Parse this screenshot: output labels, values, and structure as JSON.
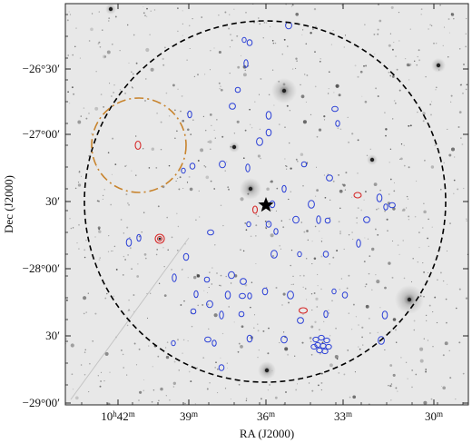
{
  "chart_data": {
    "type": "sky-map",
    "xlabel": "RA (J2000)",
    "ylabel": "Dec (J2000)",
    "x_ticks": [
      {
        "h": "10",
        "hsup": "h",
        "m": "42",
        "msup": "m"
      },
      {
        "m": "39",
        "msup": "m"
      },
      {
        "m": "36",
        "msup": "m"
      },
      {
        "m": "33",
        "msup": "m"
      },
      {
        "m": "30",
        "msup": "m"
      }
    ],
    "y_ticks": [
      "−26°30′",
      "−27°00′",
      "30′",
      "−28°00′",
      "30′",
      "−29°00′"
    ],
    "markers": {
      "field_circle": {
        "style": "black dashed"
      },
      "offset_circle": {
        "style": "orange dash-dot"
      },
      "center": {
        "symbol": "star",
        "color": "#000000"
      }
    },
    "colors": {
      "blue_contours": "#2a3fd6",
      "red_contours": "#d62a2a",
      "orange_circle": "#c8842e",
      "background": "#e9e9e9"
    }
  }
}
